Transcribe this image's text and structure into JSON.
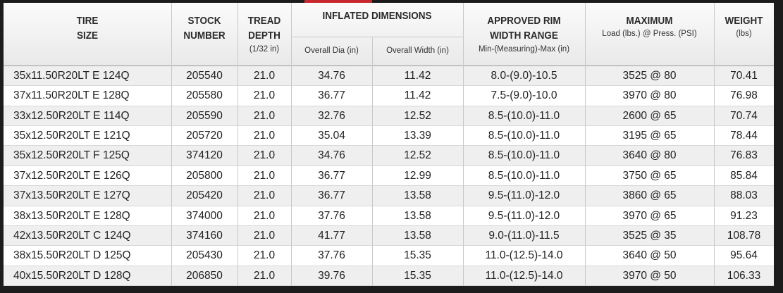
{
  "header": {
    "tire_size": [
      "TIRE",
      "SIZE"
    ],
    "stock_number": [
      "STOCK",
      "NUMBER"
    ],
    "tread_depth": {
      "lines": [
        "TREAD",
        "DEPTH"
      ],
      "note": "(1/32 in)"
    },
    "inflated_dimensions": {
      "title": "INFLATED DIMENSIONS",
      "sub": [
        "Overall Dia (in)",
        "Overall Width (in)"
      ]
    },
    "rim_width": {
      "lines": [
        "APPROVED RIM",
        "WIDTH RANGE"
      ],
      "note": "Min-(Measuring)-Max (in)"
    },
    "maximum": {
      "lines": [
        "MAXIMUM"
      ],
      "note": "Load (lbs.) @ Press. (PSI)"
    },
    "weight": {
      "lines": [
        "WEIGHT"
      ],
      "note": "(lbs)"
    }
  },
  "table": {
    "rows": [
      [
        "35x11.50R20LT E 124Q",
        "205540",
        "21.0",
        "34.76",
        "11.42",
        "8.0-(9.0)-10.5",
        "3525 @ 80",
        "70.41"
      ],
      [
        "37x11.50R20LT E 128Q",
        "205580",
        "21.0",
        "36.77",
        "11.42",
        "7.5-(9.0)-10.0",
        "3970 @ 80",
        "76.98"
      ],
      [
        "33x12.50R20LT E 114Q",
        "205590",
        "21.0",
        "32.76",
        "12.52",
        "8.5-(10.0)-11.0",
        "2600 @ 65",
        "70.74"
      ],
      [
        "35x12.50R20LT E 121Q",
        "205720",
        "21.0",
        "35.04",
        "13.39",
        "8.5-(10.0)-11.0",
        "3195 @ 65",
        "78.44"
      ],
      [
        "35x12.50R20LT F 125Q",
        "374120",
        "21.0",
        "34.76",
        "12.52",
        "8.5-(10.0)-11.0",
        "3640 @ 80",
        "76.83"
      ],
      [
        "37x12.50R20LT E 126Q",
        "205800",
        "21.0",
        "36.77",
        "12.99",
        "8.5-(10.0)-11.0",
        "3750 @ 65",
        "85.84"
      ],
      [
        "37x13.50R20LT E 127Q",
        "205420",
        "21.0",
        "36.77",
        "13.58",
        "9.5-(11.0)-12.0",
        "3860 @ 65",
        "88.03"
      ],
      [
        "38x13.50R20LT E 128Q",
        "374000",
        "21.0",
        "37.76",
        "13.58",
        "9.5-(11.0)-12.0",
        "3970 @ 65",
        "91.23"
      ],
      [
        "42x13.50R20LT C 124Q",
        "374160",
        "21.0",
        "41.77",
        "13.58",
        "9.0-(11.0)-11.5",
        "3525 @ 35",
        "108.78"
      ],
      [
        "38x15.50R20LT D 125Q",
        "205430",
        "21.0",
        "37.76",
        "15.35",
        "11.0-(12.5)-14.0",
        "3640 @ 50",
        "95.64"
      ],
      [
        "40x15.50R20LT D 128Q",
        "206850",
        "21.0",
        "39.76",
        "15.35",
        "11.0-(12.5)-14.0",
        "3970 @ 50",
        "106.33"
      ]
    ]
  }
}
